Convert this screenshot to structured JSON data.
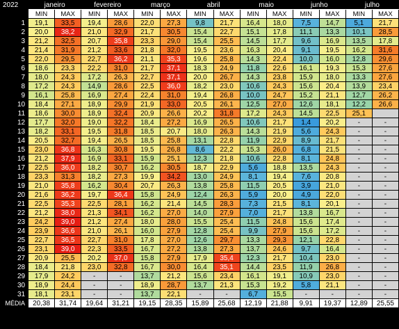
{
  "year": "2022",
  "footer_label": "MÉDIA",
  "subheaders": {
    "min": "MIN",
    "max": "MAX"
  },
  "months": [
    "janeiro",
    "fevereiro",
    "março",
    "abril",
    "maio",
    "junho",
    "julho"
  ],
  "days": [
    "1",
    "2",
    "3",
    "4",
    "5",
    "6",
    "7",
    "8",
    "9",
    "10",
    "11",
    "12",
    "13",
    "14",
    "15",
    "16",
    "17",
    "18",
    "19",
    "20",
    "21",
    "22",
    "23",
    "24",
    "25",
    "26",
    "27",
    "28",
    "29",
    "30",
    "31"
  ],
  "rows": [
    [
      "19,1",
      "33,5",
      "19,4",
      "28,6",
      "22,0",
      "27,3",
      "9,8",
      "21,7",
      "16,4",
      "18,0",
      "7,5",
      "14,7",
      "5,1",
      "21,7"
    ],
    [
      "20,0",
      "38,2",
      "21,0",
      "32,9",
      "21,7",
      "30,5",
      "15,4",
      "22,7",
      "15,1",
      "17,8",
      "11,1",
      "13,3",
      "10,1",
      "28,5"
    ],
    [
      "21,2",
      "32,5",
      "20,7",
      "35,8",
      "23,3",
      "29,0",
      "15,4",
      "25,5",
      "14,5",
      "17,7",
      "9,6",
      "16,9",
      "13,5",
      "17,8"
    ],
    [
      "21,4",
      "31,9",
      "21,2",
      "33,6",
      "21,8",
      "32,0",
      "19,5",
      "23,6",
      "16,3",
      "20,4",
      "9,1",
      "19,5",
      "16,2",
      "31,6"
    ],
    [
      "22,0",
      "29,5",
      "22,7",
      "36,2",
      "21,1",
      "35,3",
      "19,6",
      "25,8",
      "14,3",
      "22,4",
      "10,0",
      "16,0",
      "12,8",
      "29,6"
    ],
    [
      "18,6",
      "23,3",
      "22,2",
      "31,0",
      "21,7",
      "37,1",
      "18,3",
      "24,9",
      "11,8",
      "22,6",
      "16,1",
      "19,3",
      "15,3",
      "27,6"
    ],
    [
      "18,0",
      "24,3",
      "17,2",
      "26,3",
      "22,7",
      "37,1",
      "20,0",
      "26,7",
      "14,3",
      "23,8",
      "15,9",
      "18,0",
      "13,3",
      "27,6"
    ],
    [
      "17,2",
      "24,3",
      "14,9",
      "28,6",
      "22,5",
      "36,0",
      "18,2",
      "23,0",
      "10,6",
      "24,3",
      "15,6",
      "20,4",
      "13,9",
      "23,4"
    ],
    [
      "16,1",
      "25,8",
      "16,9",
      "27,4",
      "22,4",
      "31,0",
      "19,4",
      "26,8",
      "10,0",
      "24,7",
      "15,2",
      "21,1",
      "12,7",
      "26,2"
    ],
    [
      "18,4",
      "27,1",
      "18,9",
      "29,9",
      "21,9",
      "33,0",
      "20,5",
      "26,1",
      "12,5",
      "27,0",
      "12,6",
      "18,1",
      "12,2",
      "26,6"
    ],
    [
      "18,6",
      "30,0",
      "18,9",
      "32,4",
      "20,9",
      "26,6",
      "20,2",
      "31,8",
      "17,2",
      "24,3",
      "14,5",
      "22,5",
      "25,1",
      ""
    ],
    [
      "17,7",
      "32,0",
      "19,0",
      "32,2",
      "18,4",
      "27,2",
      "16,9",
      "26,5",
      "10,6",
      "21,7",
      "1,4",
      "20,2",
      "-",
      "-"
    ],
    [
      "18,2",
      "33,1",
      "19,5",
      "31,8",
      "18,5",
      "20,7",
      "18,0",
      "26,3",
      "14,3",
      "21,9",
      "5,6",
      "24,3",
      "-",
      "-"
    ],
    [
      "20,5",
      "32,7",
      "19,4",
      "26,5",
      "18,5",
      "25,8",
      "13,1",
      "22,8",
      "11,9",
      "22,9",
      "8,9",
      "21,7",
      "-",
      "-"
    ],
    [
      "23,0",
      "36,8",
      "16,3",
      "30,8",
      "19,5",
      "26,8",
      "8,6",
      "22,2",
      "15,3",
      "26,0",
      "6,8",
      "21,5",
      "-",
      "-"
    ],
    [
      "21,2",
      "37,9",
      "16,9",
      "33,1",
      "15,9",
      "25,1",
      "12,3",
      "21,8",
      "10,6",
      "22,8",
      "8,1",
      "24,8",
      "-",
      "-"
    ],
    [
      "22,5",
      "36,0",
      "18,2",
      "30,7",
      "16,2",
      "30,5",
      "18,7",
      "22,9",
      "5,6",
      "18,8",
      "13,5",
      "24,3",
      "-",
      "-"
    ],
    [
      "23,3",
      "31,3",
      "18,2",
      "27,3",
      "19,9",
      "34,2",
      "13,0",
      "24,9",
      "8,1",
      "19,4",
      "7,6",
      "20,8",
      "-",
      "-"
    ],
    [
      "21,0",
      "35,8",
      "16,2",
      "30,4",
      "20,7",
      "26,3",
      "13,8",
      "25,8",
      "11,5",
      "20,5",
      "3,9",
      "21,0",
      "-",
      "-"
    ],
    [
      "21,6",
      "36,2",
      "19,7",
      "36,4",
      "15,8",
      "24,9",
      "12,4",
      "26,3",
      "5,9",
      "20,0",
      "4,9",
      "22,0",
      "-",
      "-"
    ],
    [
      "22,5",
      "35,3",
      "22,5",
      "28,1",
      "16,2",
      "21,4",
      "14,5",
      "28,3",
      "7,3",
      "21,5",
      "8,1",
      "20,1",
      "-",
      "-"
    ],
    [
      "21,2",
      "38,0",
      "21,3",
      "34,1",
      "16,2",
      "27,0",
      "14,0",
      "27,9",
      "7,0",
      "21,7",
      "13,8",
      "16,7",
      "-",
      "-"
    ],
    [
      "24,2",
      "39,0",
      "21,2",
      "27,4",
      "18,0",
      "28,0",
      "15,5",
      "25,4",
      "11,5",
      "24,8",
      "15,6",
      "17,4",
      "-",
      "-"
    ],
    [
      "23,9",
      "36,6",
      "21,0",
      "26,1",
      "16,0",
      "27,9",
      "12,8",
      "25,4",
      "9,9",
      "27,9",
      "15,6",
      "17,2",
      "-",
      "-"
    ],
    [
      "22,7",
      "36,5",
      "22,7",
      "31,0",
      "17,8",
      "27,0",
      "12,6",
      "29,7",
      "13,3",
      "29,3",
      "12,1",
      "22,8",
      "-",
      "-"
    ],
    [
      "23,1",
      "39,0",
      "22,3",
      "33,5",
      "16,7",
      "27,2",
      "13,8",
      "27,3",
      "13,7",
      "24,6",
      "9,7",
      "16,4",
      "-",
      "-"
    ],
    [
      "20,9",
      "25,5",
      "20,2",
      "37,0",
      "15,8",
      "27,9",
      "17,9",
      "35,4",
      "12,3",
      "21,7",
      "10,4",
      "23,0",
      "-",
      "-"
    ],
    [
      "18,4",
      "21,8",
      "23,0",
      "32,8",
      "16,7",
      "30,0",
      "16,4",
      "35,1",
      "14,4",
      "23,5",
      "11,9",
      "26,8",
      "-",
      "-"
    ],
    [
      "17,9",
      "24,2",
      "-",
      "-",
      "13,7",
      "21,2",
      "15,6",
      "23,4",
      "16,1",
      "19,1",
      "10,9",
      "23,0",
      "-",
      "-"
    ],
    [
      "18,9",
      "24,4",
      "-",
      "-",
      "18,9",
      "28,7",
      "13,7",
      "21,3",
      "15,3",
      "19,2",
      "5,8",
      "21,1",
      "-",
      "-"
    ],
    [
      "18,1",
      "23,1",
      "-",
      "-",
      "13,7",
      "22,1",
      "-",
      "-",
      "6,7",
      "15,5",
      "-",
      "-",
      "-",
      "-"
    ]
  ],
  "means": [
    "20,38",
    "31,74",
    "19,64",
    "31,21",
    "19,15",
    "28,35",
    "15,89",
    "25,68",
    "12,19",
    "21,88",
    "9,91",
    "19,37",
    "12,89",
    "25,55"
  ]
}
